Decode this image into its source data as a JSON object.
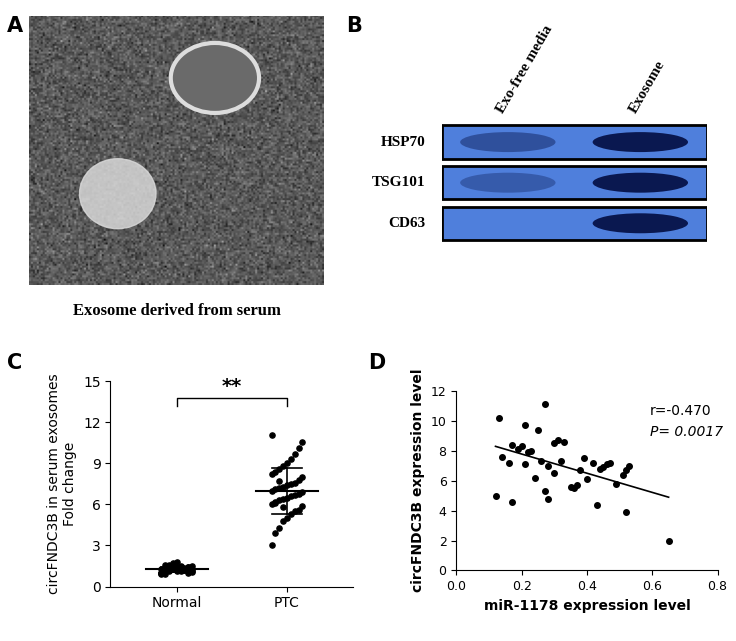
{
  "panel_labels": [
    "A",
    "B",
    "C",
    "D"
  ],
  "image_panel": {
    "caption": "Exosome derived from serum"
  },
  "blot_panel": {
    "lanes": [
      "Exo-free media",
      "Exosome"
    ],
    "rows": [
      "HSP70",
      "TSG101",
      "CD63"
    ],
    "band_intensity": [
      [
        0.45,
        1.0
      ],
      [
        0.35,
        1.0
      ],
      [
        0.0,
        1.0
      ]
    ]
  },
  "chart_data": [
    {
      "type": "dot_plot",
      "y_label": "circFNDC3B in serum exosomes\nFold change",
      "categories": [
        "Normal",
        "PTC"
      ],
      "values": [
        [
          1.0,
          1.1,
          1.2,
          1.3,
          1.4,
          1.5,
          1.2,
          1.1,
          1.3,
          1.0,
          0.9,
          1.6,
          1.7,
          1.8,
          1.2,
          1.3,
          1.4,
          1.1,
          1.0,
          1.2,
          1.5,
          1.3,
          1.25,
          1.15,
          1.35,
          1.45,
          1.05,
          0.95,
          1.6,
          1.2,
          1.3,
          1.1,
          1.4,
          1.2,
          1.0,
          1.5,
          1.3,
          1.2,
          1.1,
          1.4
        ],
        [
          3.0,
          3.9,
          4.3,
          4.8,
          5.0,
          5.3,
          5.5,
          5.6,
          5.9,
          6.0,
          6.1,
          6.3,
          6.4,
          6.5,
          6.6,
          6.7,
          6.8,
          6.9,
          7.0,
          7.1,
          7.2,
          7.3,
          7.4,
          7.5,
          7.6,
          7.8,
          8.0,
          8.2,
          8.4,
          8.6,
          8.8,
          9.0,
          9.3,
          9.7,
          10.1,
          10.6,
          11.1,
          6.2,
          7.7,
          5.8
        ]
      ],
      "mean": [
        1.25,
        7.0
      ],
      "sd": [
        0.2,
        1.7
      ],
      "significance": "**",
      "color": "#000000",
      "ylim": [
        0,
        15
      ],
      "yticks": [
        0,
        3,
        6,
        9,
        12,
        15
      ]
    },
    {
      "type": "scatter",
      "x_label": "miR-1178 expression level",
      "y_label": "circFNDC3B expression level",
      "x": [
        0.12,
        0.13,
        0.14,
        0.16,
        0.17,
        0.17,
        0.19,
        0.2,
        0.21,
        0.21,
        0.22,
        0.23,
        0.24,
        0.25,
        0.26,
        0.27,
        0.27,
        0.28,
        0.28,
        0.3,
        0.3,
        0.31,
        0.32,
        0.33,
        0.35,
        0.36,
        0.37,
        0.38,
        0.39,
        0.4,
        0.42,
        0.43,
        0.44,
        0.45,
        0.46,
        0.47,
        0.49,
        0.51,
        0.52,
        0.52,
        0.53,
        0.65
      ],
      "values": [
        5.0,
        10.2,
        7.6,
        7.2,
        4.6,
        8.4,
        8.1,
        8.3,
        7.1,
        9.7,
        7.9,
        8.0,
        6.2,
        9.4,
        7.3,
        11.1,
        5.3,
        4.8,
        7.0,
        6.5,
        8.5,
        8.7,
        7.3,
        8.6,
        5.6,
        5.5,
        5.7,
        6.7,
        7.5,
        6.1,
        7.2,
        4.4,
        6.8,
        6.9,
        7.1,
        7.2,
        5.8,
        6.4,
        3.9,
        6.7,
        7.0,
        2.0
      ],
      "trend_line": {
        "x": [
          0.12,
          0.65
        ],
        "y": [
          8.3,
          4.9
        ]
      },
      "annotations": [
        "r=-0.470",
        "P= 0.0017"
      ],
      "color": "#000000",
      "xlim": [
        0,
        0.8
      ],
      "xticks": [
        {
          "value": 0,
          "label": "0.0"
        },
        0.2,
        0.4,
        0.6,
        0.8
      ],
      "ylim": [
        0,
        12
      ],
      "yticks": [
        0,
        2,
        4,
        6,
        8,
        10,
        12
      ]
    }
  ]
}
